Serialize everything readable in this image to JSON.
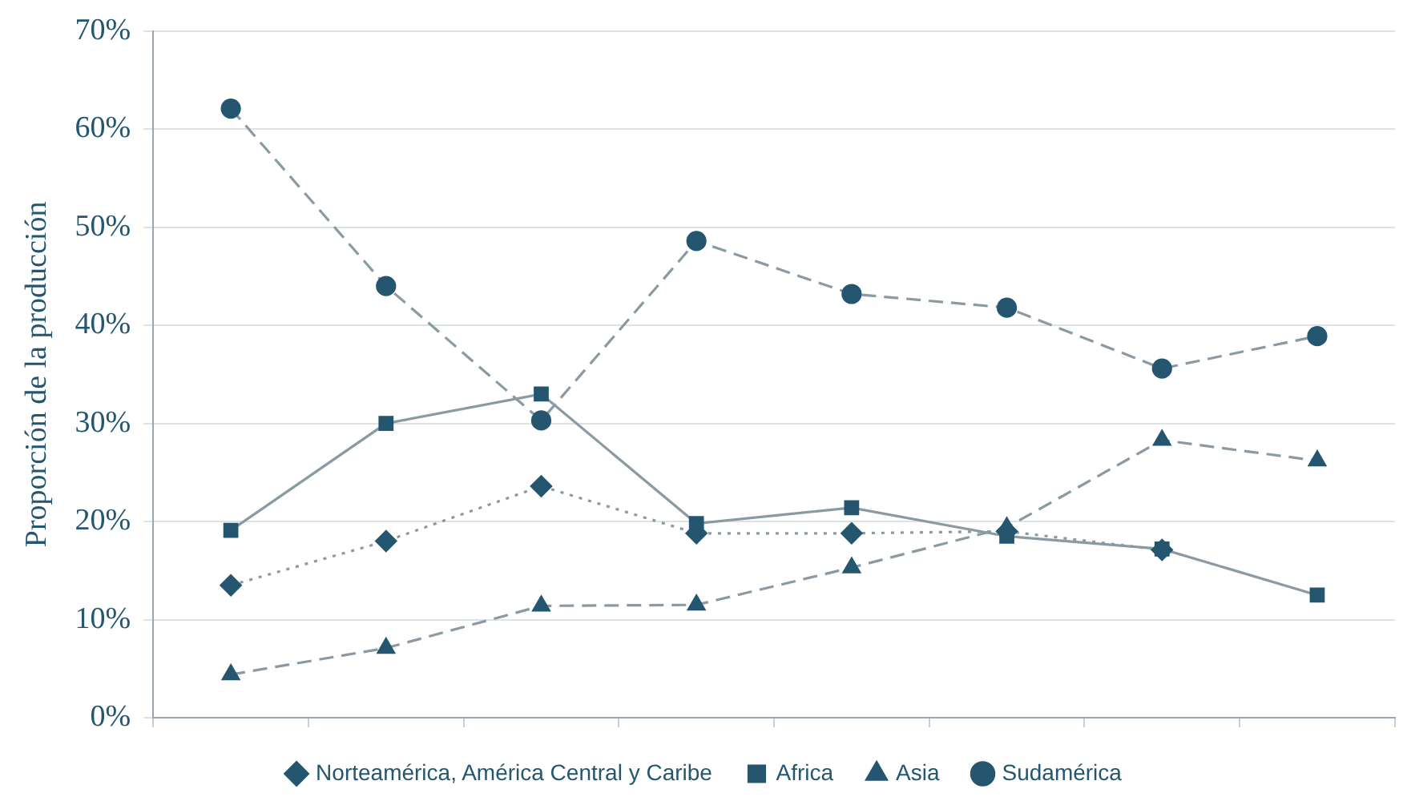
{
  "chart_data": {
    "type": "line",
    "ylabel": "Proporción de la producción",
    "categories": [
      null,
      null,
      null,
      null,
      null,
      null,
      null,
      null
    ],
    "series": [
      {
        "name": "Norteamérica, América Central y Caribe",
        "color": "#24566f",
        "marker": "diamond",
        "line_style": "dotted",
        "values": [
          13.5,
          18,
          23.6,
          18.8,
          18.8,
          19,
          17.1,
          null
        ]
      },
      {
        "name": "Africa",
        "color": "#24566f",
        "marker": "square",
        "line_style": "solid",
        "values": [
          19.1,
          30,
          33,
          19.8,
          21.4,
          18.5,
          17.2,
          12.5
        ]
      },
      {
        "name": "Asia",
        "color": "#24566f",
        "marker": "triangle",
        "line_style": "dashed",
        "values": [
          4.4,
          7.1,
          11.4,
          11.5,
          15.3,
          19.4,
          28.3,
          26.2
        ]
      },
      {
        "name": "Sudamérica",
        "color": "#24566f",
        "marker": "circle",
        "line_style": "dashed",
        "values": [
          62.1,
          44,
          30.3,
          48.6,
          43.2,
          41.8,
          35.6,
          38.9
        ]
      }
    ],
    "ylim": [
      0,
      70
    ],
    "yticks": [
      {
        "value": 0,
        "label": "0%"
      },
      {
        "value": 10,
        "label": "10%"
      },
      {
        "value": 20,
        "label": "20%"
      },
      {
        "value": 30,
        "label": "30%"
      },
      {
        "value": 40,
        "label": "40%"
      },
      {
        "value": 50,
        "label": "50%"
      },
      {
        "value": 60,
        "label": "60%"
      },
      {
        "value": 70,
        "label": "70%"
      }
    ],
    "grid": "y",
    "legend": "bottom",
    "tick_labels": "y"
  }
}
